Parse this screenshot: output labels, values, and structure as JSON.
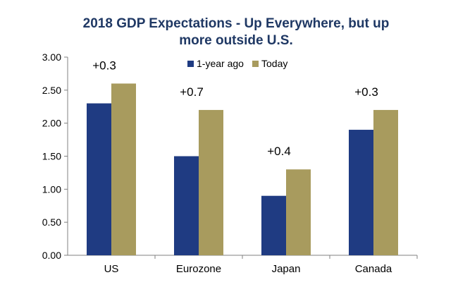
{
  "chart_data": {
    "type": "bar",
    "title_lines": [
      "2018 GDP Expectations - Up Everywhere, but up",
      "more outside U.S."
    ],
    "categories": [
      "US",
      "Eurozone",
      "Japan",
      "Canada"
    ],
    "series": [
      {
        "name": "1-year ago",
        "values": [
          2.3,
          1.5,
          0.9,
          1.9
        ],
        "color": "#1f3b82"
      },
      {
        "name": "Today",
        "values": [
          2.6,
          2.2,
          1.3,
          2.2
        ],
        "color": "#a89b5e"
      }
    ],
    "annotations": [
      "+0.3",
      "+0.7",
      "+0.4",
      "+0.3"
    ],
    "y_ticks": [
      "0.00",
      "0.50",
      "1.00",
      "1.50",
      "2.00",
      "2.50",
      "3.00"
    ],
    "ylim": [
      0,
      3
    ],
    "legend_position": "top-center",
    "grid": false
  }
}
